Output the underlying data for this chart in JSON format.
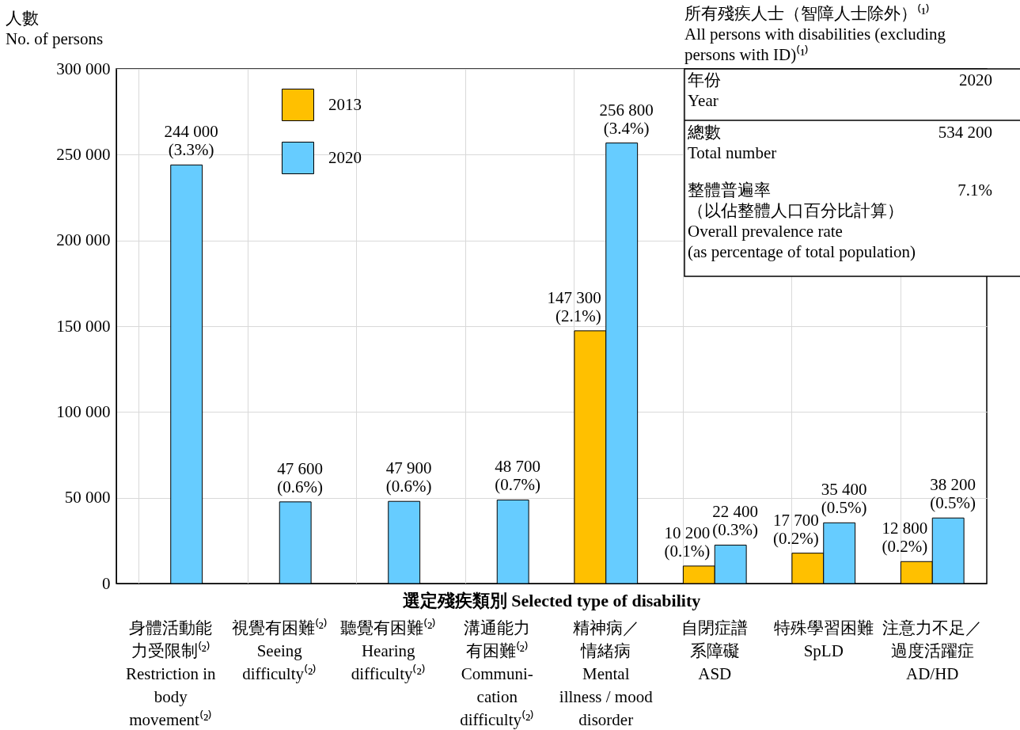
{
  "chart_data": {
    "type": "bar",
    "ylabel": "人數\nNo. of persons",
    "xlabel": "選定殘疾類別  Selected type of disability",
    "categories": [
      "身體活動能力受限制⁽²⁾\nRestriction in\nbody\nmovement⁽²⁾",
      "視覺有困難⁽²⁾\nSeeing\ndifficulty⁽²⁾",
      "聽覺有困難⁽²⁾\nHearing\ndifficulty⁽²⁾",
      "溝通能力有困難⁽²⁾\nCommuni-\ncation\ndifficulty⁽²⁾",
      "精神病／情緒病\nMental\nillness / mood\ndisorder",
      "自閉症譜系障礙\nASD",
      "特殊學習困難\nSpLD",
      "注意力不足／過度活躍症\nAD/HD"
    ],
    "series": [
      {
        "name": "2013",
        "color": "#ffc000",
        "values": [
          null,
          null,
          null,
          null,
          147300,
          10200,
          17700,
          12800
        ],
        "value_labels": [
          null,
          null,
          null,
          null,
          "147 300\n(2.1%)",
          "10 200\n(0.1%)",
          "17 700\n(0.2%)",
          "12 800\n(0.2%)"
        ]
      },
      {
        "name": "2020",
        "color": "#66ccff",
        "values": [
          244000,
          47600,
          47900,
          48700,
          256800,
          22400,
          35400,
          38200
        ],
        "value_labels": [
          "244 000\n(3.3%)",
          "47 600\n(0.6%)",
          "47 900\n(0.6%)",
          "48 700\n(0.7%)",
          "256 800\n(3.4%)",
          "22 400\n(0.3%)",
          "35 400\n(0.5%)",
          "38 200\n(0.5%)"
        ]
      }
    ],
    "ylim": [
      0,
      300000
    ],
    "yticks": [
      {
        "value": 0,
        "label": "0"
      },
      {
        "value": 50000,
        "label": "50 000"
      },
      {
        "value": 100000,
        "label": "100 000"
      },
      {
        "value": 150000,
        "label": "150 000"
      },
      {
        "value": 200000,
        "label": "200 000"
      },
      {
        "value": 250000,
        "label": "250 000"
      },
      {
        "value": 300000,
        "label": "300 000"
      }
    ],
    "grid": true,
    "legend": "top left",
    "annotations": [
      "所有殘疾人士（智障人士除外）⁽¹⁾",
      "All persons with disabilities (excluding\npersons with ID)⁽¹⁾",
      "年份\nYear",
      "2020",
      "總數\nTotal number",
      "534 200",
      "整體普遍率（以佔整體人口百分比計算）\nOverall prevalence rate\n(as percentage of total population)",
      "7.1%"
    ]
  }
}
